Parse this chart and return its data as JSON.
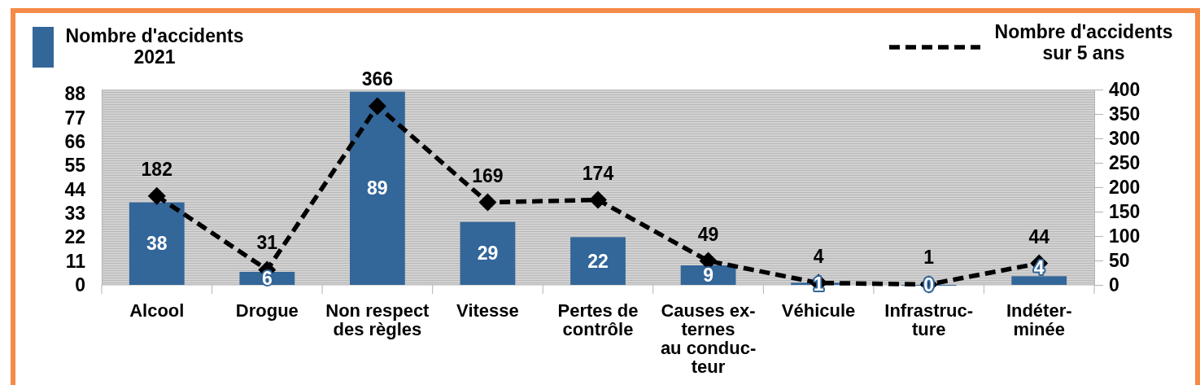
{
  "chart_data": {
    "type": "bar",
    "categories": [
      "Alcool",
      "Drogue",
      "Non respect\ndes règles",
      "Vitesse",
      "Pertes de\ncontrôle",
      "Causes ex-\nternes\nau conduc-\nteur",
      "Véhicule",
      "Infrastruc-\nture",
      "Indéter-\nminée"
    ],
    "series": [
      {
        "name": "Nombre d'accidents 2021",
        "color": "#336699",
        "values": [
          38,
          6,
          89,
          29,
          22,
          9,
          1,
          0,
          4
        ]
      },
      {
        "name": "Nombre d'accidents sur 5 ans",
        "type": "line",
        "axis": "y2",
        "color": "#000000",
        "values": [
          182,
          31,
          366,
          169,
          174,
          49,
          4,
          1,
          44
        ]
      }
    ],
    "ylim": [
      0,
      90
    ],
    "yticks": [
      0,
      11,
      22,
      33,
      44,
      55,
      66,
      77,
      88
    ],
    "y2lim": [
      0,
      400
    ],
    "y2ticks": [
      0,
      50,
      100,
      150,
      200,
      250,
      300,
      350,
      400
    ],
    "marker": "diamond",
    "line_style": "dashed",
    "data_labels": true,
    "legend": "top"
  }
}
